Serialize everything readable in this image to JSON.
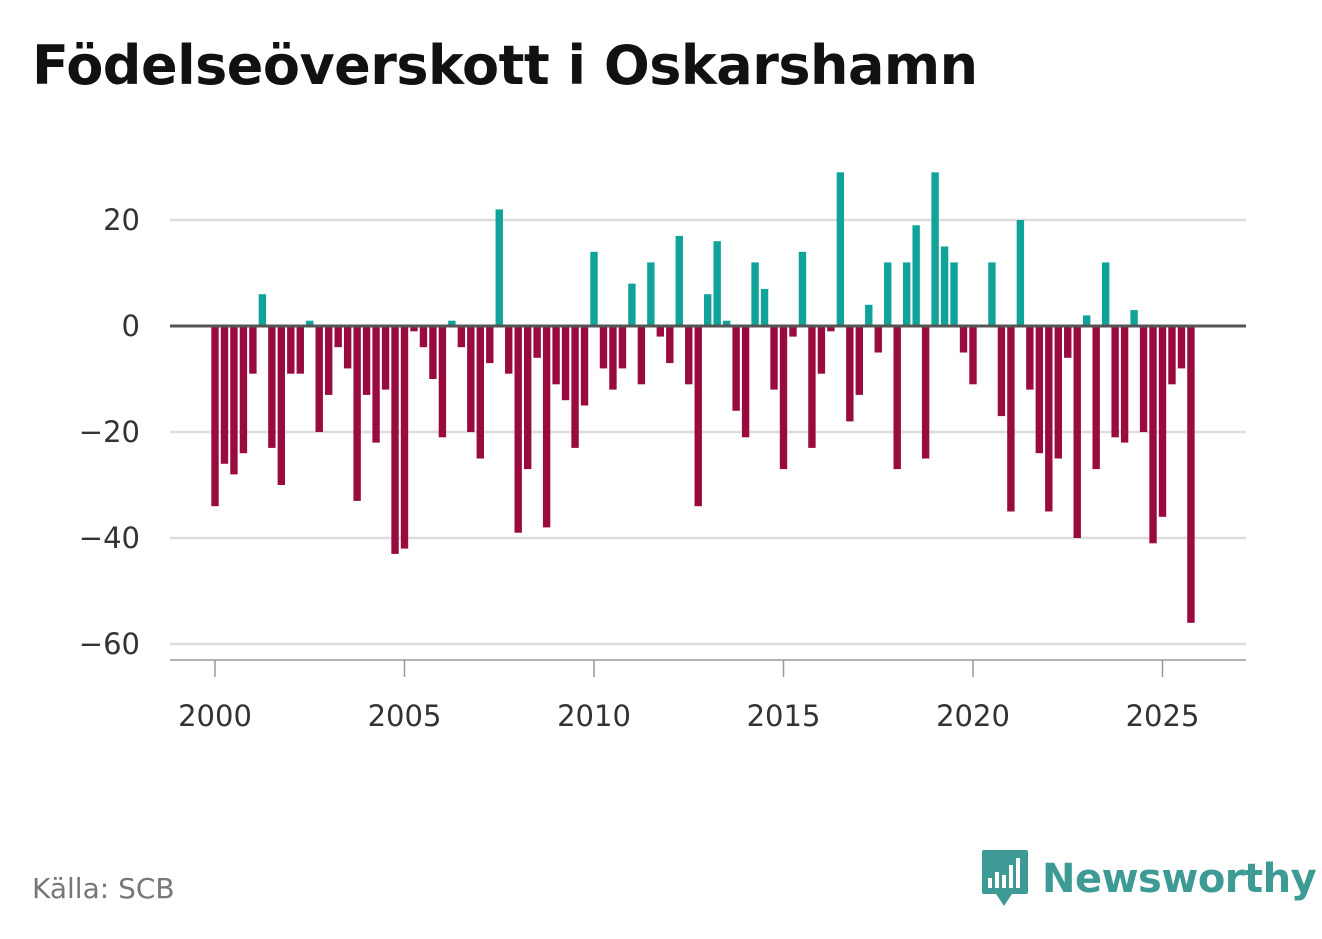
{
  "title": "Födelseöverskott i Oskarshamn",
  "source": "Källa: SCB",
  "brand": {
    "name": "Newsworthy",
    "icon": "newsworthy-logo-icon",
    "color": "#3d9a94"
  },
  "colors": {
    "positive": "#0fa39a",
    "negative": "#990a3f",
    "grid": "#dddddd",
    "zero_line": "#555555",
    "axis": "#999999"
  },
  "chart_data": {
    "type": "bar",
    "title": "Födelseöverskott i Oskarshamn",
    "xlabel": "",
    "ylabel": "",
    "frequency": "monthly",
    "x_start": 2000.0,
    "x_step": 0.25,
    "xlim": [
      1999.0,
      2027.3
    ],
    "ylim": [
      -65,
      35
    ],
    "xticks": [
      2000,
      2005,
      2010,
      2015,
      2020,
      2025
    ],
    "yticks": [
      20,
      0,
      -20,
      -40,
      -60
    ],
    "ytick_labels": [
      "20",
      "0",
      "−20",
      "−40",
      "−60"
    ],
    "values": [
      -34,
      -26,
      -28,
      -24,
      -9,
      6,
      -23,
      -30,
      -9,
      -9,
      1,
      -20,
      -13,
      -4,
      -8,
      -33,
      -13,
      -22,
      -12,
      -43,
      -42,
      -1,
      -4,
      -10,
      -21,
      1,
      -4,
      -20,
      -25,
      -7,
      22,
      -9,
      -39,
      -27,
      -6,
      -38,
      -11,
      -14,
      -23,
      -15,
      14,
      -8,
      -12,
      -8,
      8,
      -11,
      12,
      -2,
      -7,
      17,
      -11,
      -34,
      6,
      16,
      1,
      -16,
      -21,
      12,
      7,
      -12,
      -27,
      -2,
      14,
      -23,
      -9,
      -1,
      29,
      -18,
      -13,
      4,
      -5,
      12,
      -27,
      12,
      19,
      -25,
      29,
      15,
      12,
      -5,
      -11,
      0,
      12,
      -17,
      -35,
      20,
      -12,
      -24,
      -35,
      -25,
      -6,
      -40,
      2,
      -27,
      12,
      -21,
      -22,
      3,
      -20,
      -41,
      -36,
      -11,
      -8,
      -56
    ]
  }
}
